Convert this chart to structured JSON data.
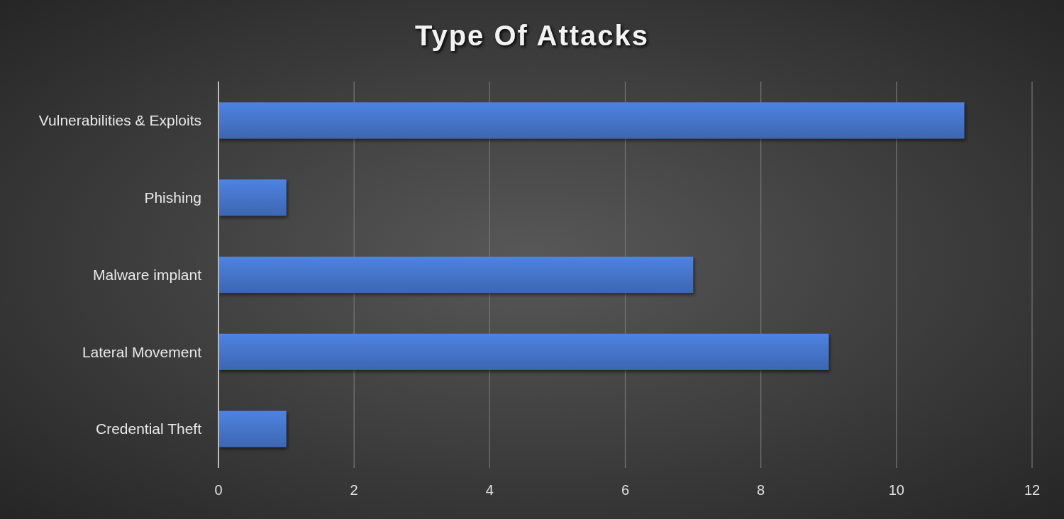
{
  "chart_data": {
    "type": "bar",
    "title": "Type Of Attacks",
    "orientation": "horizontal",
    "categories": [
      "Vulnerabilities & Exploits",
      "Phishing",
      "Malware implant",
      "Lateral Movement",
      "Credential Theft"
    ],
    "values": [
      11,
      1,
      7,
      9,
      1
    ],
    "color": "#4472c4",
    "xlim": [
      0,
      12
    ],
    "xticks": [
      0,
      2,
      4,
      6,
      8,
      10,
      12
    ],
    "grid": "x"
  }
}
